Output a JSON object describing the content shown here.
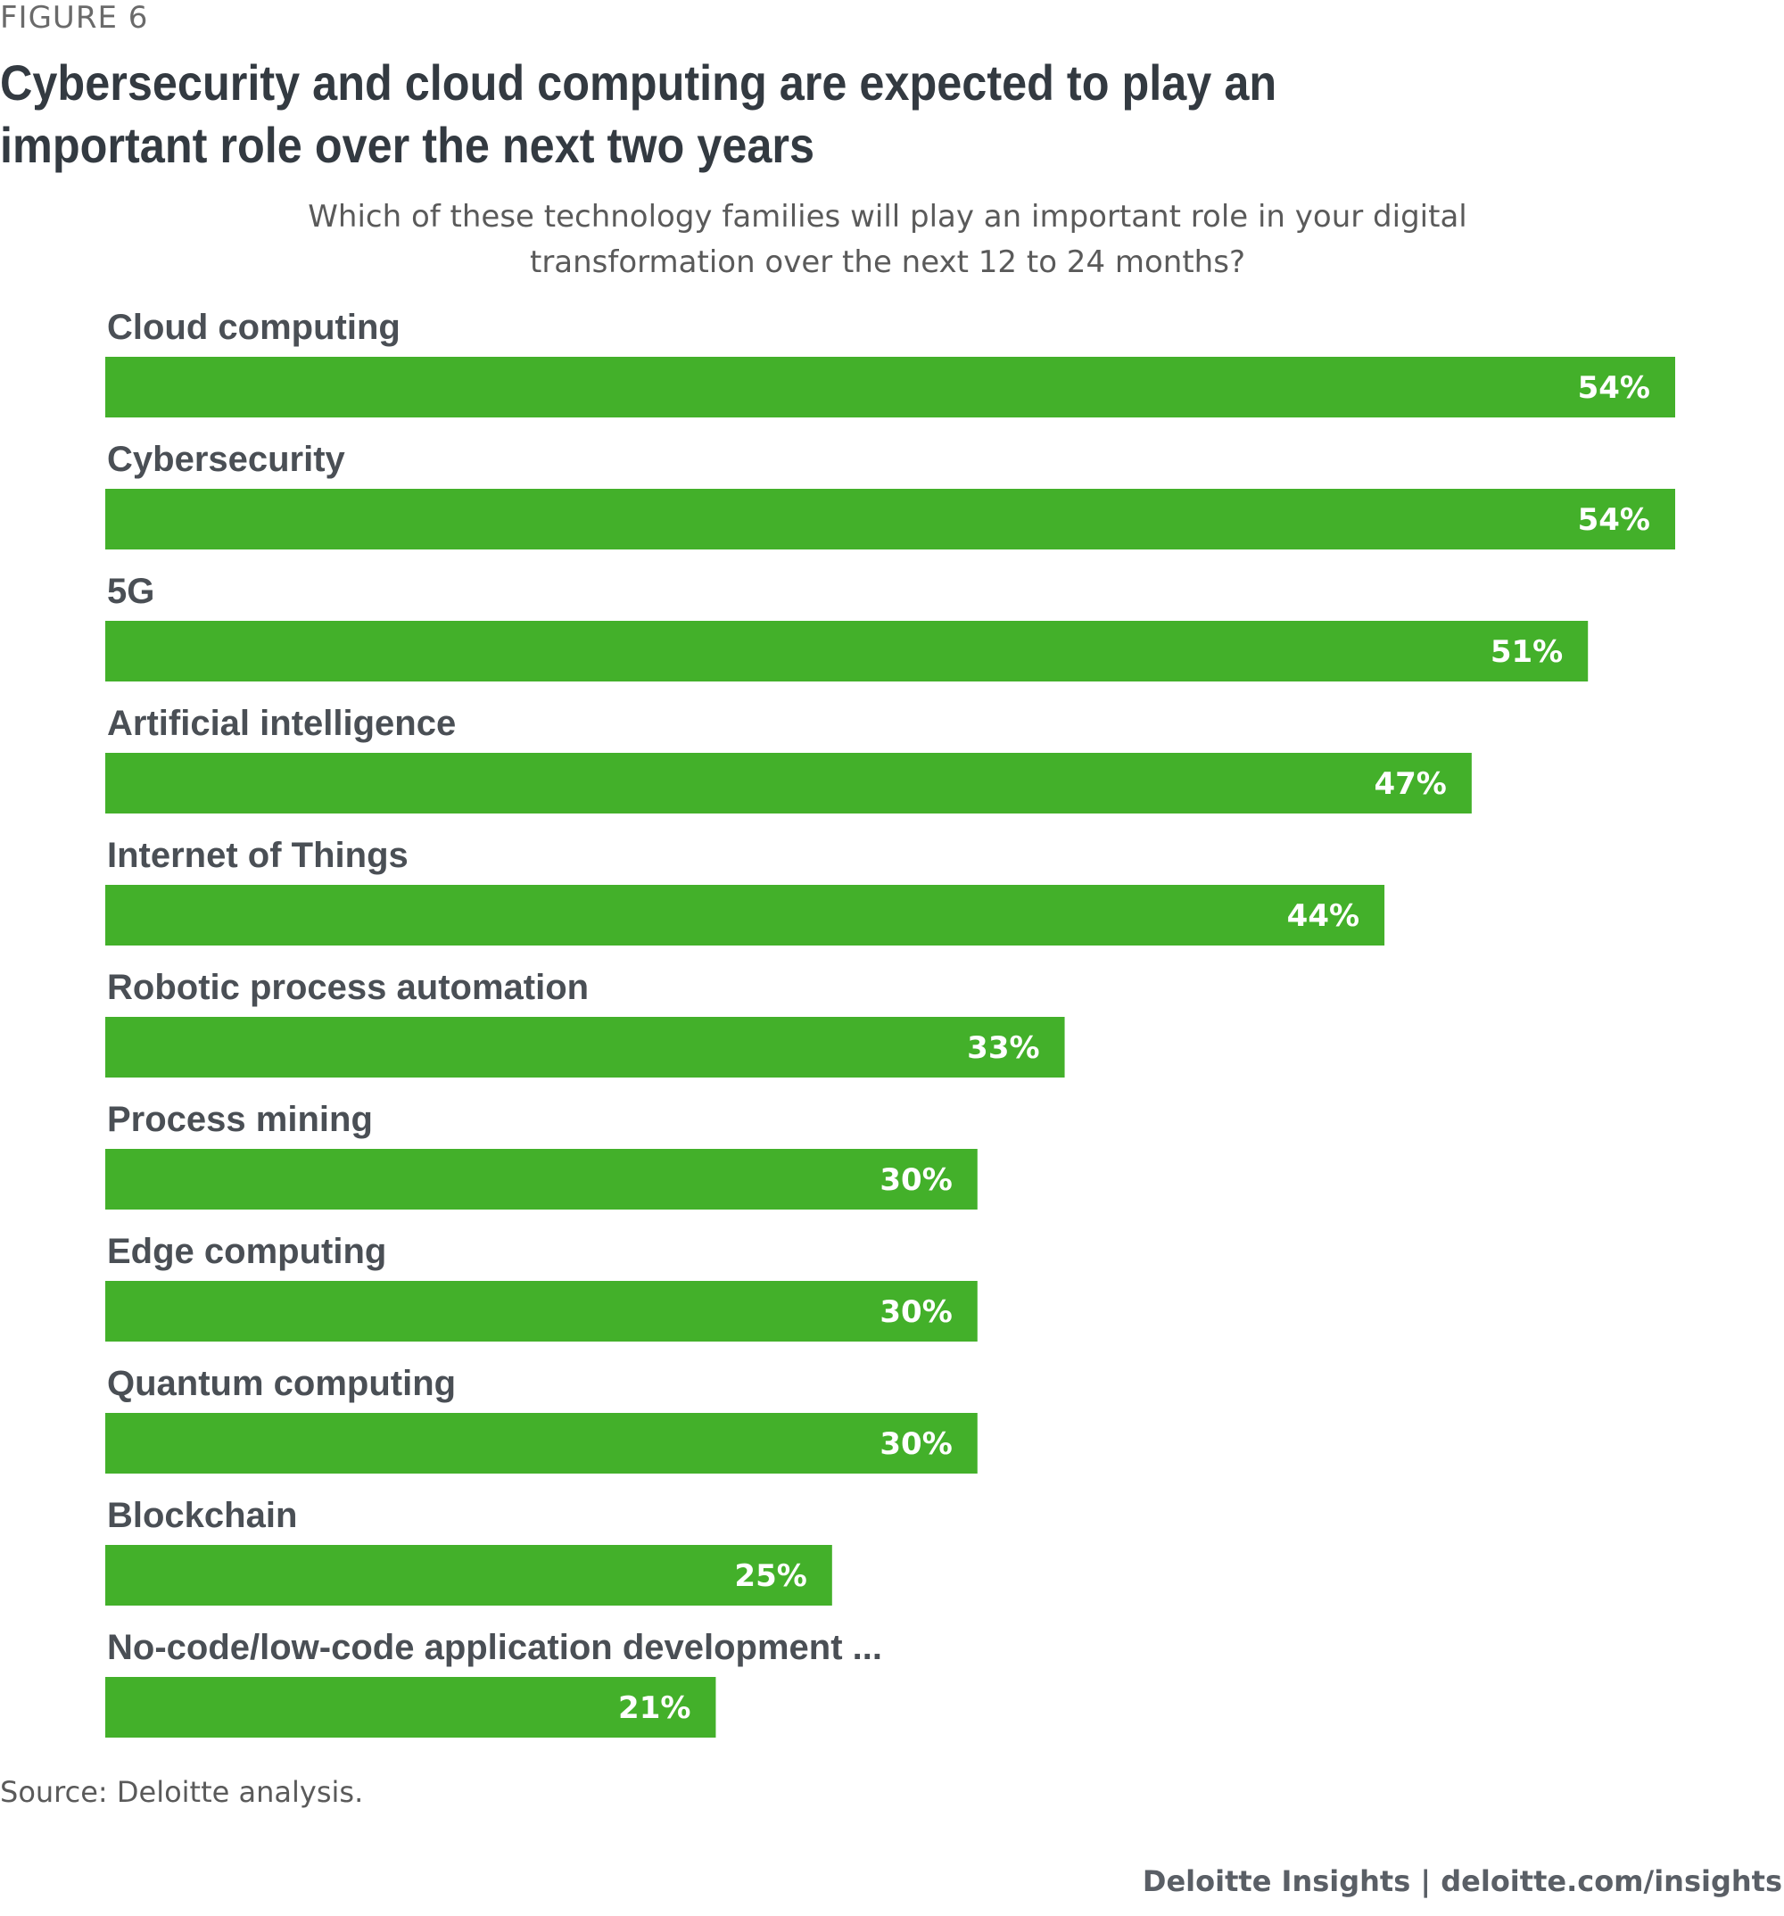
{
  "figure_label": "FIGURE 6",
  "chart_data": {
    "type": "bar",
    "orientation": "horizontal",
    "title": "Cybersecurity and cloud computing are expected to play an important role over the next two years",
    "subtitle": "Which of these technology families will play an important role in your digital transformation over the next 12 to 24 months?",
    "categories": [
      "Cloud computing",
      "Cybersecurity",
      "5G",
      "Artificial intelligence",
      "Internet of Things",
      "Robotic process automation",
      "Process mining",
      "Edge computing",
      "Quantum computing",
      "Blockchain",
      "No-code/low-code application development ..."
    ],
    "values": [
      54,
      54,
      51,
      47,
      44,
      33,
      30,
      30,
      30,
      25,
      21
    ],
    "value_labels": [
      "54%",
      "54%",
      "51%",
      "47%",
      "44%",
      "33%",
      "30%",
      "30%",
      "30%",
      "25%",
      "21%"
    ],
    "unit": "%",
    "xlim": [
      0,
      54
    ],
    "bar_color": "#43b02a",
    "xlabel": "",
    "ylabel": "",
    "grid": false
  },
  "source": "Source: Deloitte analysis.",
  "footer": "Deloitte Insights | deloitte.com/insights"
}
